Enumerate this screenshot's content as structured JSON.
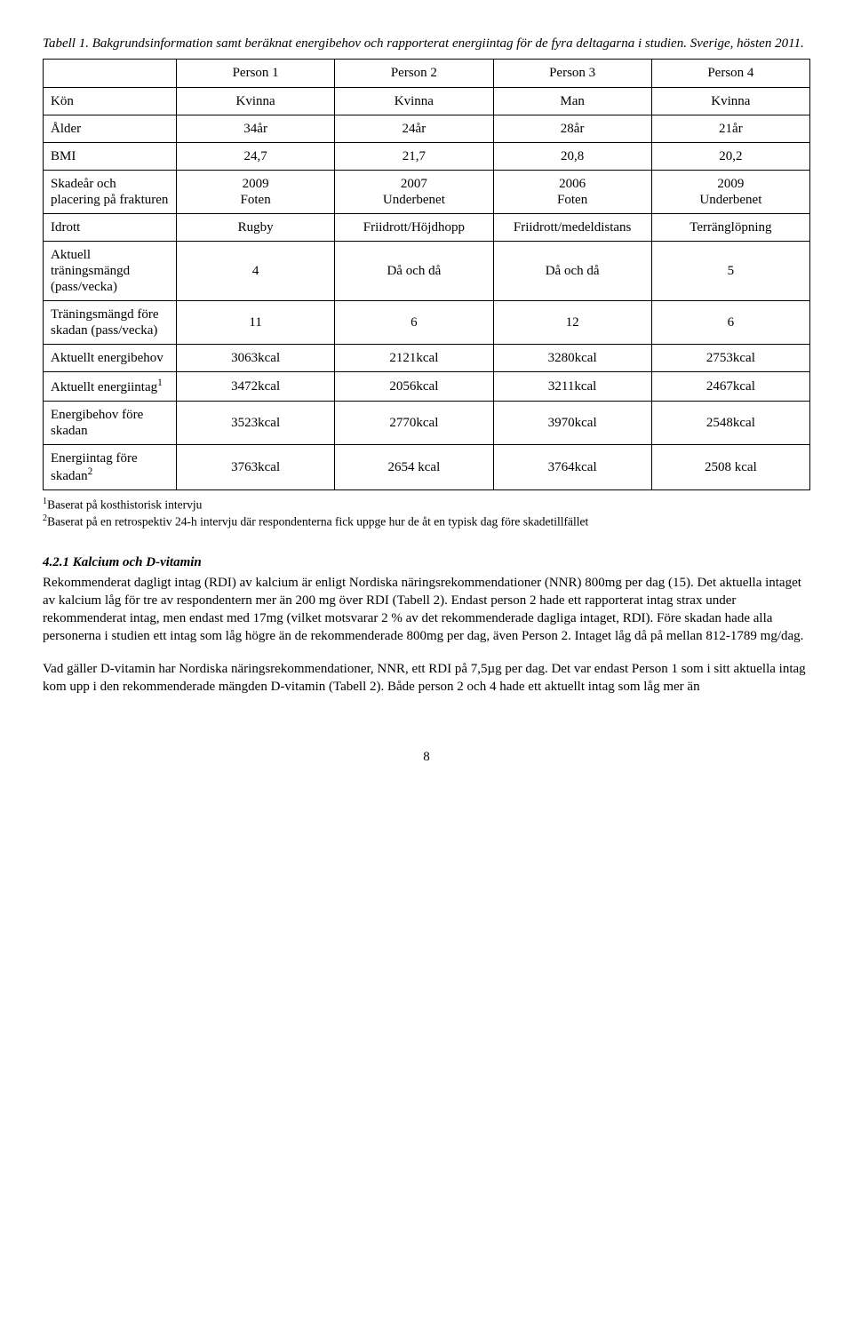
{
  "caption": "Tabell 1. Bakgrundsinformation samt beräknat energibehov och rapporterat energiintag för de fyra deltagarna i studien. Sverige, hösten 2011.",
  "colHeaders": [
    "Person 1",
    "Person 2",
    "Person 3",
    "Person 4"
  ],
  "rows": [
    {
      "label": "Kön",
      "cells": [
        "Kvinna",
        "Kvinna",
        "Man",
        "Kvinna"
      ]
    },
    {
      "label": "Ålder",
      "cells": [
        "34år",
        "24år",
        "28år",
        "21år"
      ]
    },
    {
      "label": "BMI",
      "cells": [
        "24,7",
        "21,7",
        "20,8",
        "20,2"
      ]
    },
    {
      "label": "Skadeår och placering på frakturen",
      "cells": [
        "2009\nFoten",
        "2007\nUnderbenet",
        "2006\nFoten",
        "2009\nUnderbenet"
      ]
    },
    {
      "label": "Idrott",
      "cells": [
        "Rugby",
        "Friidrott/Höjdhopp",
        "Friidrott/medeldistans",
        "Terränglöpning"
      ]
    },
    {
      "label": "Aktuell träningsmängd (pass/vecka)",
      "cells": [
        "4",
        "Då och då",
        "Då och då",
        "5"
      ]
    },
    {
      "label": "Träningsmängd före skadan (pass/vecka)",
      "cells": [
        "11",
        "6",
        "12",
        "6"
      ]
    },
    {
      "label": "Aktuellt energibehov",
      "cells": [
        "3063kcal",
        "2121kcal",
        "3280kcal",
        "2753kcal"
      ]
    },
    {
      "label": "Aktuellt energiintag",
      "sup": "1",
      "cells": [
        "3472kcal",
        "2056kcal",
        "3211kcal",
        "2467kcal"
      ]
    },
    {
      "label": "Energibehov före skadan",
      "cells": [
        "3523kcal",
        "2770kcal",
        "3970kcal",
        "2548kcal"
      ]
    },
    {
      "label": "Energiintag före skadan",
      "sup": "2",
      "cells": [
        "3763kcal",
        "2654 kcal",
        "3764kcal",
        "2508 kcal"
      ]
    }
  ],
  "footnotes": [
    {
      "sup": "1",
      "text": "Baserat på kosthistorisk intervju"
    },
    {
      "sup": "2",
      "text": "Baserat på en retrospektiv 24-h intervju där respondenterna fick uppge hur de åt en typisk dag före skadetillfället"
    }
  ],
  "sectionTitle": "4.2.1 Kalcium och D-vitamin",
  "para1": "Rekommenderat dagligt intag (RDI) av kalcium är enligt Nordiska näringsrekommendationer (NNR) 800mg per dag (15). Det aktuella intaget av kalcium låg för tre av respondentern mer än 200 mg över RDI (Tabell 2). Endast person 2 hade ett rapporterat intag strax under rekommenderat intag, men endast med 17mg (vilket motsvarar 2 % av det rekommenderade dagliga intaget, RDI). Före skadan hade alla personerna i studien ett intag som låg högre än de rekommenderade 800mg per dag, även Person 2. Intaget låg då på mellan 812-1789 mg/dag.",
  "para2": "Vad gäller D-vitamin har Nordiska näringsrekommendationer, NNR, ett RDI på 7,5µg per dag. Det var endast Person 1 som i sitt aktuella intag kom upp i den rekommenderade mängden D-vitamin (Tabell 2). Både person 2 och 4 hade ett aktuellt intag som låg mer än",
  "pageNumber": "8",
  "layout": {
    "colWidths": [
      "150px",
      "auto",
      "auto",
      "auto",
      "auto"
    ],
    "borderColor": "#000000",
    "backgroundColor": "#ffffff",
    "fontFamily": "Times New Roman",
    "fontSize": 15,
    "captionFontStyle": "italic",
    "footnoteFontSize": 13.5,
    "sectionTitleStyle": {
      "bold": true,
      "italic": true
    }
  }
}
